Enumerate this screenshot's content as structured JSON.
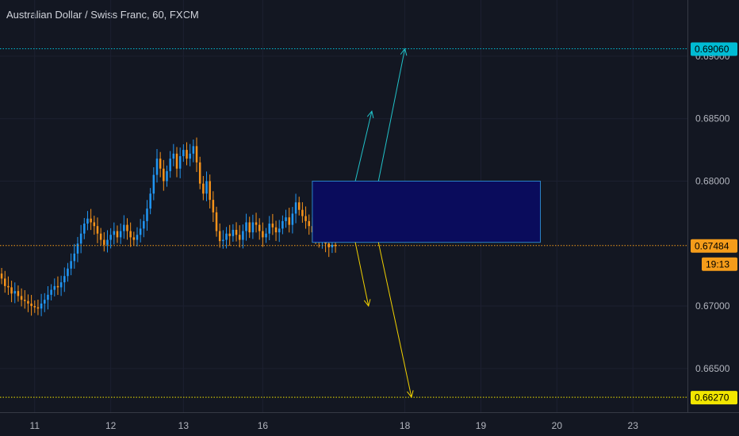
{
  "header": {
    "title": "Australian Dollar / Swiss Franc, 60, FXCM"
  },
  "chart_data": {
    "type": "candlestick",
    "symbol": "Australian Dollar / Swiss Franc",
    "interval": "60",
    "source": "FXCM",
    "y_ticks": [
      "0.69000",
      "0.68500",
      "0.68000",
      "0.67000",
      "0.66500"
    ],
    "x_ticks": [
      "11",
      "12",
      "13",
      "16",
      "18",
      "19",
      "20",
      "23"
    ],
    "ylim": [
      0.6615,
      0.6945
    ],
    "bars_total": 208,
    "last_bar_index": 101,
    "levels": [
      {
        "label": "0.69060",
        "value": 0.6906,
        "color": "#00bcd4",
        "style": "dotted"
      },
      {
        "label": "0.67484",
        "value": 0.67484,
        "color": "#f59c1a",
        "style": "dotted"
      },
      {
        "label": "0.66270",
        "value": 0.6627,
        "color": "#f2e600",
        "style": "dotted"
      }
    ],
    "countdown": {
      "label": "19:13",
      "color": "#f59c1a"
    },
    "zone": {
      "bar_start": 94,
      "bar_end": 163,
      "top": 0.68,
      "bottom": 0.6751,
      "fill": "#0a0c5c",
      "stroke": "#2a83ca"
    },
    "arrows": [
      {
        "from_bar": 107,
        "from": 0.68,
        "to_bar": 112,
        "to": 0.6856,
        "color": "#21c2c9"
      },
      {
        "from_bar": 114,
        "from": 0.68,
        "to_bar": 122,
        "to": 0.6906,
        "color": "#21c2c9"
      },
      {
        "from_bar": 107,
        "from": 0.6751,
        "to_bar": 111,
        "to": 0.67,
        "color": "#f2d100"
      },
      {
        "from_bar": 114,
        "from": 0.6751,
        "to_bar": 124,
        "to": 0.6627,
        "color": "#f2d100"
      }
    ],
    "up_color": "#2196f3",
    "down_color": "#f7931a",
    "closes": [
      0.6722,
      0.6716,
      0.6715,
      0.671,
      0.6712,
      0.6708,
      0.6705,
      0.6704,
      0.6702,
      0.67,
      0.6699,
      0.6698,
      0.6702,
      0.6705,
      0.6709,
      0.6713,
      0.6716,
      0.6715,
      0.6719,
      0.6724,
      0.673,
      0.6736,
      0.6742,
      0.675,
      0.6758,
      0.6766,
      0.677,
      0.6767,
      0.6764,
      0.6758,
      0.6753,
      0.6749,
      0.6753,
      0.6757,
      0.676,
      0.6755,
      0.676,
      0.6765,
      0.676,
      0.6755,
      0.6753,
      0.6757,
      0.6762,
      0.6768,
      0.6778,
      0.679,
      0.6805,
      0.6818,
      0.681,
      0.68,
      0.6808,
      0.6818,
      0.6822,
      0.681,
      0.682,
      0.6825,
      0.6818,
      0.6822,
      0.6828,
      0.6815,
      0.6798,
      0.679,
      0.68,
      0.6785,
      0.6775,
      0.676,
      0.6752,
      0.6753,
      0.6758,
      0.6756,
      0.6761,
      0.6757,
      0.6753,
      0.676,
      0.6767,
      0.6759,
      0.6767,
      0.6765,
      0.676,
      0.6755,
      0.6758,
      0.6766,
      0.6763,
      0.6759,
      0.6762,
      0.6768,
      0.6771,
      0.6765,
      0.6774,
      0.6783,
      0.6777,
      0.6772,
      0.6768,
      0.6764,
      0.6759,
      0.6754,
      0.6752,
      0.6756,
      0.675,
      0.6747,
      0.6749,
      0.6748
    ]
  }
}
